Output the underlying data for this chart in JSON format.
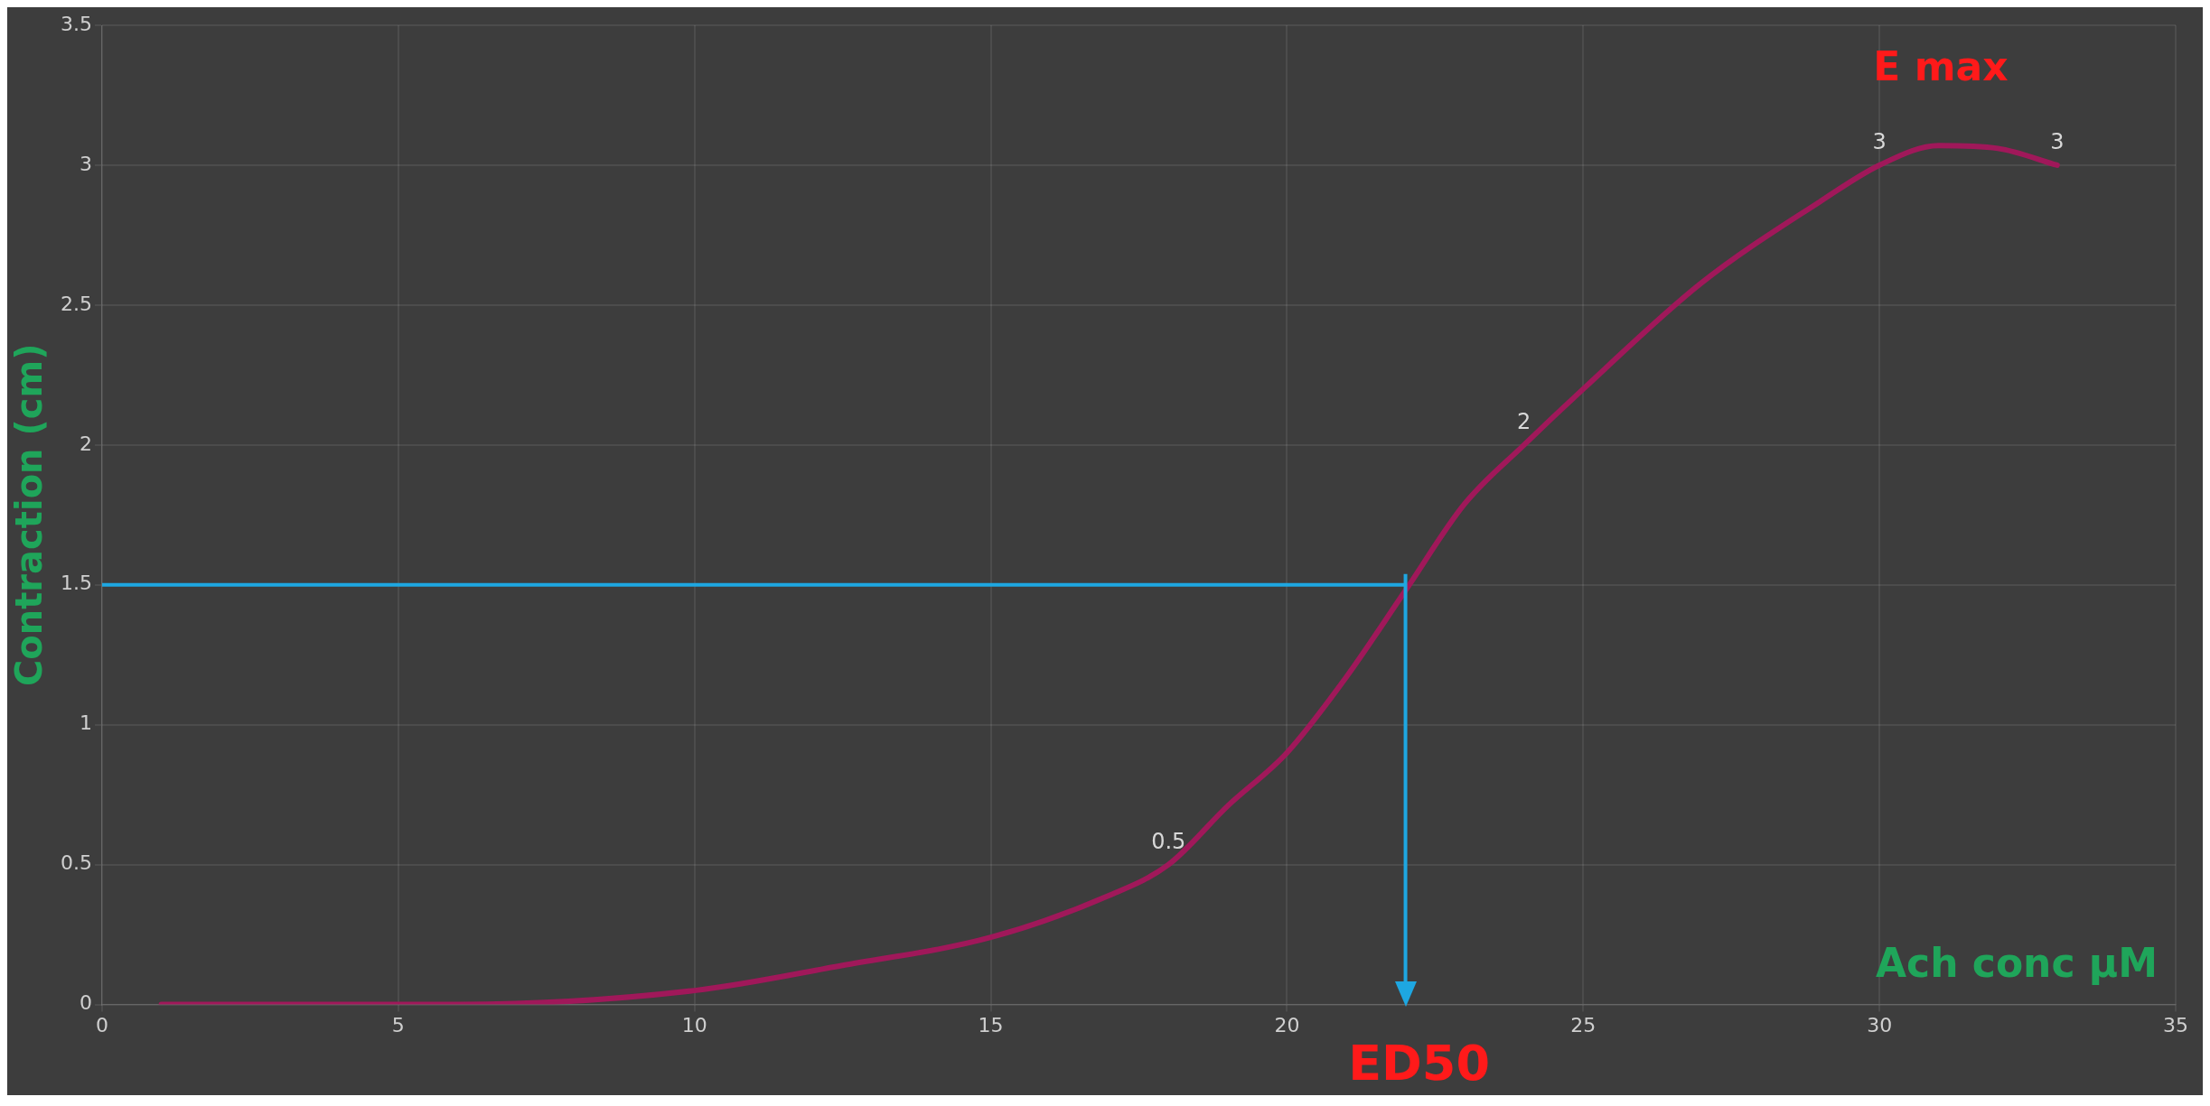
{
  "chart_data": {
    "type": "line",
    "xlabel": "Ach conc µM",
    "ylabel": "Contraction (cm)",
    "x": [
      1,
      6,
      10,
      12.5,
      15,
      17,
      18,
      19,
      20,
      21,
      22,
      23,
      24,
      25,
      27,
      29,
      30,
      31,
      32,
      33
    ],
    "series": [
      {
        "color": "#a0185a",
        "values": [
          0,
          0,
          0.05,
          0.14,
          0.24,
          0.39,
          0.5,
          0.71,
          0.9,
          1.17,
          1.48,
          1.79,
          2,
          2.2,
          2.58,
          2.87,
          3,
          3.07,
          3.06,
          3
        ],
        "value_labels": [
          null,
          null,
          null,
          null,
          null,
          null,
          "0.5",
          null,
          null,
          null,
          null,
          null,
          "2",
          null,
          null,
          null,
          "3",
          null,
          null,
          "3"
        ]
      }
    ],
    "xlim": [
      0,
      35
    ],
    "xticks": [
      0,
      5,
      10,
      15,
      20,
      25,
      30,
      35
    ],
    "ylim": [
      0,
      3.5
    ],
    "yticks": [
      0,
      0.5,
      1,
      1.5,
      2,
      2.5,
      3,
      3.5
    ],
    "grid": true,
    "marker": "none",
    "line_style": "solid",
    "legend": false,
    "ref_lines": [
      {
        "axis": "y",
        "value": 1.5,
        "color": "#1ea7e1"
      },
      {
        "axis": "x",
        "value": 22,
        "label": "ED50",
        "color": "#1ea7e1"
      }
    ],
    "annotations": [
      "E max"
    ]
  }
}
